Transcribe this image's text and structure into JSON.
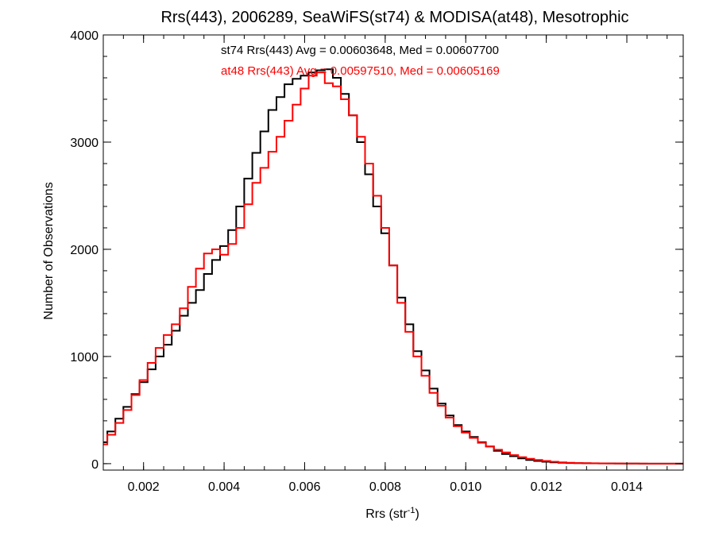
{
  "chart_data": {
    "type": "line",
    "step": true,
    "title": "Rrs(443), 2006289, SeaWiFS(st74) & MODISA(at48), Mesotrophic",
    "xlabel": {
      "base": "Rrs (str",
      "sup": "-1",
      "suffix": ")"
    },
    "ylabel": "Number of Observations",
    "xlim": [
      0.001,
      0.0154
    ],
    "ylim": [
      -60,
      4000
    ],
    "x_ticks": [
      0.002,
      0.004,
      0.006,
      0.008,
      0.01,
      0.012,
      0.014
    ],
    "x_tick_labels": [
      "0.002",
      "0.004",
      "0.006",
      "0.008",
      "0.010",
      "0.012",
      "0.014"
    ],
    "y_ticks": [
      0,
      1000,
      2000,
      3000,
      4000
    ],
    "y_tick_labels": [
      "0",
      "1000",
      "2000",
      "3000",
      "4000"
    ],
    "grid": false,
    "annotations": [
      {
        "text": "st74 Rrs(443) Avg = 0.00603648, Med = 0.00607700",
        "color": "#000000"
      },
      {
        "text": "at48 Rrs(443) Avg = 0.00597510, Med = 0.00605169",
        "color": "#ff0000"
      }
    ],
    "series": [
      {
        "name": "st74",
        "color": "#000000",
        "x": [
          0.001,
          0.0012,
          0.0014,
          0.0016,
          0.0018,
          0.002,
          0.0022,
          0.0024,
          0.0026,
          0.0028,
          0.003,
          0.0032,
          0.0034,
          0.0036,
          0.0038,
          0.004,
          0.0042,
          0.0044,
          0.0046,
          0.0048,
          0.005,
          0.0052,
          0.0054,
          0.0056,
          0.0058,
          0.006,
          0.0062,
          0.0064,
          0.0066,
          0.0068,
          0.007,
          0.0072,
          0.0074,
          0.0076,
          0.0078,
          0.008,
          0.0082,
          0.0084,
          0.0086,
          0.0088,
          0.009,
          0.0092,
          0.0094,
          0.0096,
          0.0098,
          0.01,
          0.0102,
          0.0104,
          0.0106,
          0.0108,
          0.011,
          0.0112,
          0.0114,
          0.0116,
          0.0118,
          0.012,
          0.0122,
          0.0124,
          0.0126,
          0.0128,
          0.013,
          0.0132,
          0.0134,
          0.0136,
          0.0138,
          0.014,
          0.0142,
          0.0144,
          0.0146,
          0.0148,
          0.015,
          0.0152,
          0.0154
        ],
        "y": [
          200,
          300,
          420,
          530,
          650,
          760,
          880,
          1000,
          1110,
          1240,
          1380,
          1500,
          1620,
          1770,
          1900,
          2030,
          2180,
          2400,
          2660,
          2900,
          3100,
          3300,
          3420,
          3540,
          3590,
          3620,
          3650,
          3670,
          3680,
          3600,
          3450,
          3250,
          3000,
          2700,
          2400,
          2150,
          1850,
          1550,
          1300,
          1050,
          870,
          700,
          560,
          450,
          360,
          300,
          250,
          200,
          160,
          120,
          90,
          70,
          50,
          35,
          25,
          18,
          12,
          8,
          6,
          5,
          4,
          3,
          2,
          2,
          1,
          1,
          1,
          0,
          0,
          0,
          0,
          0,
          0
        ]
      },
      {
        "name": "at48",
        "color": "#ff0000",
        "x": [
          0.001,
          0.0012,
          0.0014,
          0.0016,
          0.0018,
          0.002,
          0.0022,
          0.0024,
          0.0026,
          0.0028,
          0.003,
          0.0032,
          0.0034,
          0.0036,
          0.0038,
          0.004,
          0.0042,
          0.0044,
          0.0046,
          0.0048,
          0.005,
          0.0052,
          0.0054,
          0.0056,
          0.0058,
          0.006,
          0.0062,
          0.0064,
          0.0066,
          0.0068,
          0.007,
          0.0072,
          0.0074,
          0.0076,
          0.0078,
          0.008,
          0.0082,
          0.0084,
          0.0086,
          0.0088,
          0.009,
          0.0092,
          0.0094,
          0.0096,
          0.0098,
          0.01,
          0.0102,
          0.0104,
          0.0106,
          0.0108,
          0.011,
          0.0112,
          0.0114,
          0.0116,
          0.0118,
          0.012,
          0.0122,
          0.0124,
          0.0126,
          0.0128,
          0.013,
          0.0132,
          0.0134,
          0.0136,
          0.0138,
          0.014,
          0.0142,
          0.0144,
          0.0146,
          0.0148,
          0.015,
          0.0152,
          0.0154
        ],
        "y": [
          180,
          270,
          380,
          500,
          640,
          780,
          940,
          1080,
          1200,
          1300,
          1450,
          1650,
          1820,
          1960,
          2000,
          1950,
          2050,
          2200,
          2420,
          2620,
          2760,
          2910,
          3050,
          3200,
          3350,
          3500,
          3620,
          3650,
          3550,
          3520,
          3400,
          3250,
          3050,
          2800,
          2500,
          2200,
          1850,
          1500,
          1230,
          1000,
          820,
          660,
          540,
          430,
          350,
          290,
          240,
          195,
          160,
          130,
          105,
          80,
          60,
          45,
          35,
          25,
          18,
          12,
          8,
          6,
          5,
          4,
          3,
          2,
          2,
          1,
          1,
          1,
          0,
          0,
          0,
          0,
          0
        ]
      }
    ]
  }
}
